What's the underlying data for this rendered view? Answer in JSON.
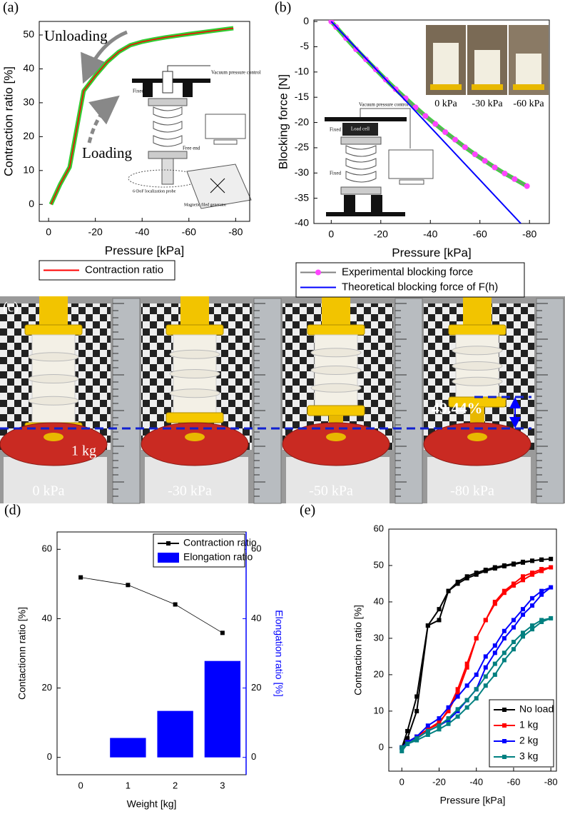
{
  "chart_data": [
    {
      "type": "line",
      "panel_label": "(a)",
      "x_label": "Pressure [kPa]",
      "y_label": "Contraction ratio [%]",
      "xlim": [
        4,
        -86
      ],
      "ylim": [
        -5,
        54
      ],
      "xticks": [
        0,
        -20,
        -40,
        -60,
        -80
      ],
      "yticks": [
        0,
        10,
        20,
        30,
        40,
        50
      ],
      "x": [
        -1,
        -5,
        -9,
        -15,
        -20,
        -25,
        -30,
        -35,
        -40,
        -45,
        -50,
        -60,
        -70,
        -79
      ],
      "series": [
        {
          "name": "Contraction ratio",
          "color": "#ff0000",
          "halo_color": "#33cc33",
          "values": [
            0,
            6,
            11,
            33.5,
            38,
            42,
            45,
            47,
            48,
            48.7,
            49.3,
            50.3,
            51.2,
            52
          ]
        }
      ],
      "legend": "below",
      "annotations": [
        "Unloading",
        "Loading"
      ],
      "inset_labels": [
        "Vacuum pressure control",
        "Fixed",
        "Free end",
        "6-DoF localization probe",
        "Magnetic filed generator"
      ]
    },
    {
      "type": "line",
      "panel_label": "(b)",
      "x_label": "Pressure [kPa]",
      "y_label": "Blocking force [N]",
      "xlim": [
        7,
        -88
      ],
      "ylim": [
        -40,
        0.3
      ],
      "xticks": [
        0,
        -20,
        -40,
        -60,
        -80
      ],
      "yticks": [
        0,
        -5,
        -10,
        -15,
        -20,
        -25,
        -30,
        -35,
        -40
      ],
      "series": [
        {
          "name": "Experimental blocking force",
          "color": "#ff44ff",
          "line_color": "#808080",
          "halo_color": "#44cc44",
          "marker": "circle",
          "x": [
            0,
            -2,
            -6,
            -10,
            -14,
            -18,
            -22,
            -26,
            -30,
            -34,
            -38,
            -42,
            -46,
            -50,
            -54,
            -58,
            -62,
            -66,
            -70,
            -74,
            -79
          ],
          "values": [
            0,
            -1.1,
            -3.3,
            -5.5,
            -7.5,
            -9.5,
            -11.5,
            -13.4,
            -15.2,
            -17.0,
            -18.7,
            -20.3,
            -21.9,
            -23.4,
            -24.9,
            -26.3,
            -27.6,
            -28.9,
            -30.1,
            -31.2,
            -32.6
          ]
        },
        {
          "name": "Theoretical blocking force of F(h)",
          "color": "#0000ff",
          "x": [
            0,
            -76.5
          ],
          "values": [
            0,
            -40
          ]
        }
      ],
      "legend": "below",
      "photo_labels": [
        "0 kPa",
        "-30 kPa",
        "-60 kPa"
      ],
      "inset_labels": [
        "Vacuum pressure control",
        "Fixed",
        "Load cell",
        "Fixed"
      ]
    },
    {
      "type": "combo",
      "panel_label": "(d)",
      "x_label": "Weight [kg]",
      "y_label": "Contactionn ratio [%]",
      "y2_label": "Elongation ratio [%]",
      "categories": [
        "0",
        "1",
        "2",
        "3"
      ],
      "ylim": [
        -5,
        65
      ],
      "yticks": [
        0,
        20,
        40,
        60
      ],
      "y2lim": [
        -5,
        65
      ],
      "y2ticks": [
        0,
        20,
        40,
        60
      ],
      "y2_color": "#0000ff",
      "series": [
        {
          "name": "Contraction ratio",
          "type": "line",
          "color": "#000000",
          "marker": "square",
          "values": [
            51.9,
            49.7,
            44.1,
            35.9
          ]
        },
        {
          "name": "Elongation ratio",
          "type": "bar",
          "axis": "y2",
          "color": "#0000ff",
          "values": [
            0,
            5.6,
            13.4,
            27.8
          ]
        }
      ],
      "legend": "upper right"
    },
    {
      "type": "line",
      "panel_label": "(e)",
      "x_label": "Pressure [kPa]",
      "y_label": "Contraction ratio [%]",
      "xlim": [
        7,
        -83
      ],
      "ylim": [
        -6.5,
        60
      ],
      "xticks": [
        0,
        -20,
        -40,
        -60,
        -80
      ],
      "yticks": [
        0,
        10,
        20,
        30,
        40,
        50,
        60
      ],
      "x": [
        0,
        -3,
        -8,
        -14,
        -20,
        -25,
        -30,
        -35,
        -40,
        -45,
        -50,
        -55,
        -60,
        -65,
        -70,
        -75,
        -80,
        -75,
        -70,
        -65,
        -60,
        -55,
        -50,
        -45,
        -40,
        -35,
        -30,
        -25,
        -20,
        -14,
        -8,
        -3,
        0
      ],
      "series": [
        {
          "name": "No load",
          "color": "#000000",
          "marker": "square",
          "values": [
            0,
            2.5,
            10,
            33.5,
            38,
            43,
            45.5,
            47,
            48,
            48.8,
            49.5,
            50,
            50.5,
            51,
            51.3,
            51.6,
            51.8,
            51.6,
            51.3,
            50.8,
            50.3,
            49.8,
            49.2,
            48.5,
            47.5,
            46.5,
            45,
            43,
            35,
            33.5,
            14,
            4.5,
            0
          ]
        },
        {
          "name": "1 kg",
          "color": "#ff0000",
          "marker": "square",
          "values": [
            0,
            1.5,
            3,
            5,
            7,
            10,
            15,
            22,
            30,
            35,
            39.5,
            42.5,
            44.5,
            46,
            47.5,
            48.5,
            49.5,
            49,
            48,
            47,
            45,
            43,
            40,
            35,
            30,
            23,
            16,
            10.5,
            6.5,
            5,
            3,
            1.5,
            0
          ]
        },
        {
          "name": "2 kg",
          "color": "#0000ff",
          "marker": "square",
          "values": [
            0,
            1,
            2.5,
            4.5,
            6,
            7.5,
            10,
            13,
            16,
            22,
            26,
            30,
            33,
            36.5,
            39,
            42,
            44,
            43,
            41,
            38,
            35,
            32,
            28,
            25,
            20,
            17,
            14,
            11,
            8,
            6,
            3,
            1.5,
            0
          ]
        },
        {
          "name": "3 kg",
          "color": "#008080",
          "marker": "square",
          "values": [
            -1,
            1,
            2,
            3.5,
            5,
            6.5,
            8.5,
            11,
            13.5,
            17,
            20,
            24,
            27,
            30.5,
            32.5,
            34.5,
            35.5,
            35,
            33.5,
            31.5,
            29,
            26,
            23,
            19.5,
            16,
            13,
            10.5,
            8,
            6,
            4.5,
            2.5,
            1,
            0
          ]
        }
      ],
      "legend": "lower right"
    }
  ],
  "photo": {
    "panel_label": "(c)",
    "pressure_labels": [
      "0 kPa",
      "-30 kPa",
      "-50 kPa",
      "-80 kPa"
    ],
    "load_label": "1 kg",
    "annotation": "49.44%"
  }
}
